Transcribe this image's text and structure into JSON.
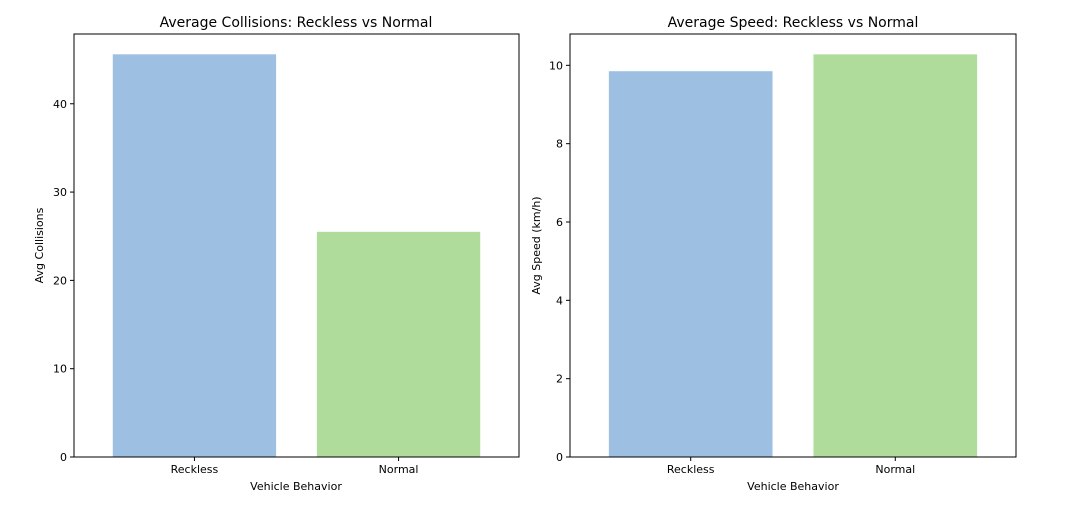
{
  "chart_data": [
    {
      "type": "bar",
      "title": "Average Collisions: Reckless vs Normal",
      "xlabel": "Vehicle Behavior",
      "ylabel": "Avg Collisions",
      "categories": [
        "Reckless",
        "Normal"
      ],
      "values": [
        45.6,
        25.5
      ],
      "colors": [
        "#9dbfe2",
        "#afdc9a"
      ],
      "ylim": [
        0,
        47.9
      ],
      "yticks": [
        0,
        10,
        20,
        30,
        40
      ],
      "grid": false,
      "legend": "none"
    },
    {
      "type": "bar",
      "title": "Average Speed: Reckless vs Normal",
      "xlabel": "Vehicle Behavior",
      "ylabel": "Avg Speed (km/h)",
      "categories": [
        "Reckless",
        "Normal"
      ],
      "values": [
        9.85,
        10.28
      ],
      "colors": [
        "#9dbfe2",
        "#afdc9a"
      ],
      "ylim": [
        0,
        10.8
      ],
      "yticks": [
        0,
        2,
        4,
        6,
        8,
        10
      ],
      "grid": false,
      "legend": "none"
    }
  ]
}
